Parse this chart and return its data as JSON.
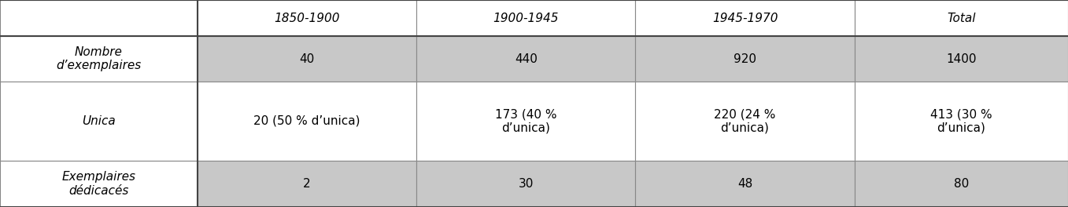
{
  "col_headers": [
    "1850-1900",
    "1900-1945",
    "1945-1970",
    "Total"
  ],
  "row_headers": [
    "Nombre\nd’exemplaires",
    "Unica",
    "Exemplaires\ndédicacés"
  ],
  "data": [
    [
      "40",
      "440",
      "920",
      "1400"
    ],
    [
      "20 (50 % d’unica)",
      "173 (40 %\nd’unica)",
      "220 (24 %\nd’unica)",
      "413 (30 %\nd’unica)"
    ],
    [
      "2",
      "30",
      "48",
      "80"
    ]
  ],
  "shaded_color": "#c8c8c8",
  "white_color": "#ffffff",
  "font_size": 11,
  "header_font_size": 11,
  "fig_width": 13.57,
  "fig_height": 2.64
}
